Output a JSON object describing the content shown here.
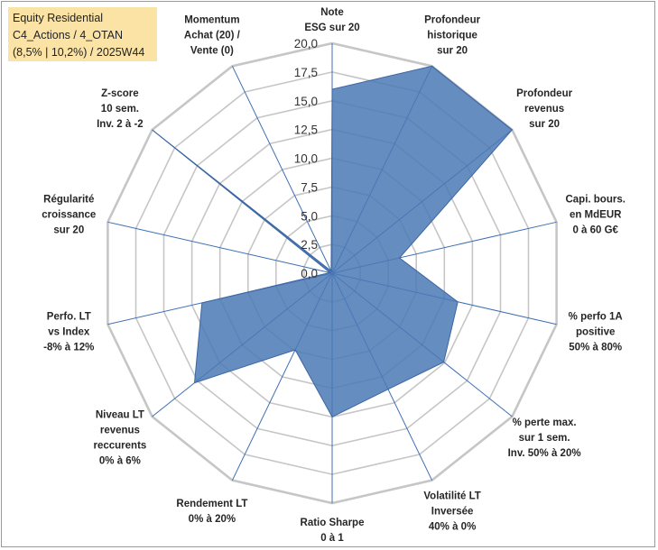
{
  "title_lines": [
    "Equity Residential",
    "C4_Actions / 4_OTAN",
    "(8,5% | 10,2%) / 2025W44"
  ],
  "colors": {
    "fill": "#4a79b5",
    "grid": "#c6c6c6",
    "spoke": "#3e6fb5",
    "title_bg": "#fbe3a6"
  },
  "chart_data": {
    "type": "radar",
    "title": "Equity Residential",
    "rmin": 0,
    "rmax": 20,
    "tick_step": 2.5,
    "tick_labels": [
      "0,0",
      "2,5",
      "5,0",
      "7,5",
      "10,0",
      "12,5",
      "15,0",
      "17,5",
      "20,0"
    ],
    "axes": [
      {
        "label": [
          "Note",
          "ESG sur 20"
        ],
        "value": 16
      },
      {
        "label": [
          "Profondeur",
          "historique",
          "sur 20"
        ],
        "value": 20
      },
      {
        "label": [
          "Profondeur",
          "revenus",
          "sur 20"
        ],
        "value": 20
      },
      {
        "label": [
          "Capi. bours.",
          "en MdEUR",
          "0 à 60 G€"
        ],
        "value": 6
      },
      {
        "label": [
          "% perfo 1A",
          "positive",
          "50% à 80%"
        ],
        "value": 11.2
      },
      {
        "label": [
          "% perte max.",
          "sur 1 sem.",
          "Inv. 50% à 20%"
        ],
        "value": 12.4
      },
      {
        "label": [
          "Volatilité LT",
          "Inversée",
          "40% à 0%"
        ],
        "value": 11.2
      },
      {
        "label": [
          "Ratio Sharpe",
          "0 à 1"
        ],
        "value": 12.5
      },
      {
        "label": [
          "Rendement LT",
          "0% à 20%"
        ],
        "value": 7.4
      },
      {
        "label": [
          "Niveau LT",
          "revenus",
          "reccurents",
          "0% à 6%"
        ],
        "value": 15.3
      },
      {
        "label": [
          "Perfo. LT",
          "vs Index",
          "-8% à 12%"
        ],
        "value": 11.6
      },
      {
        "label": [
          "Régularité",
          "croissance",
          "sur 20"
        ],
        "value": 0.2
      },
      {
        "label": [
          "Z-score",
          "10 sem.",
          "Inv. 2 à -2"
        ],
        "value": 20
      },
      {
        "label": [
          "Momentum",
          "Achat (20) /",
          "Vente (0)"
        ],
        "value": 0.2
      }
    ]
  }
}
